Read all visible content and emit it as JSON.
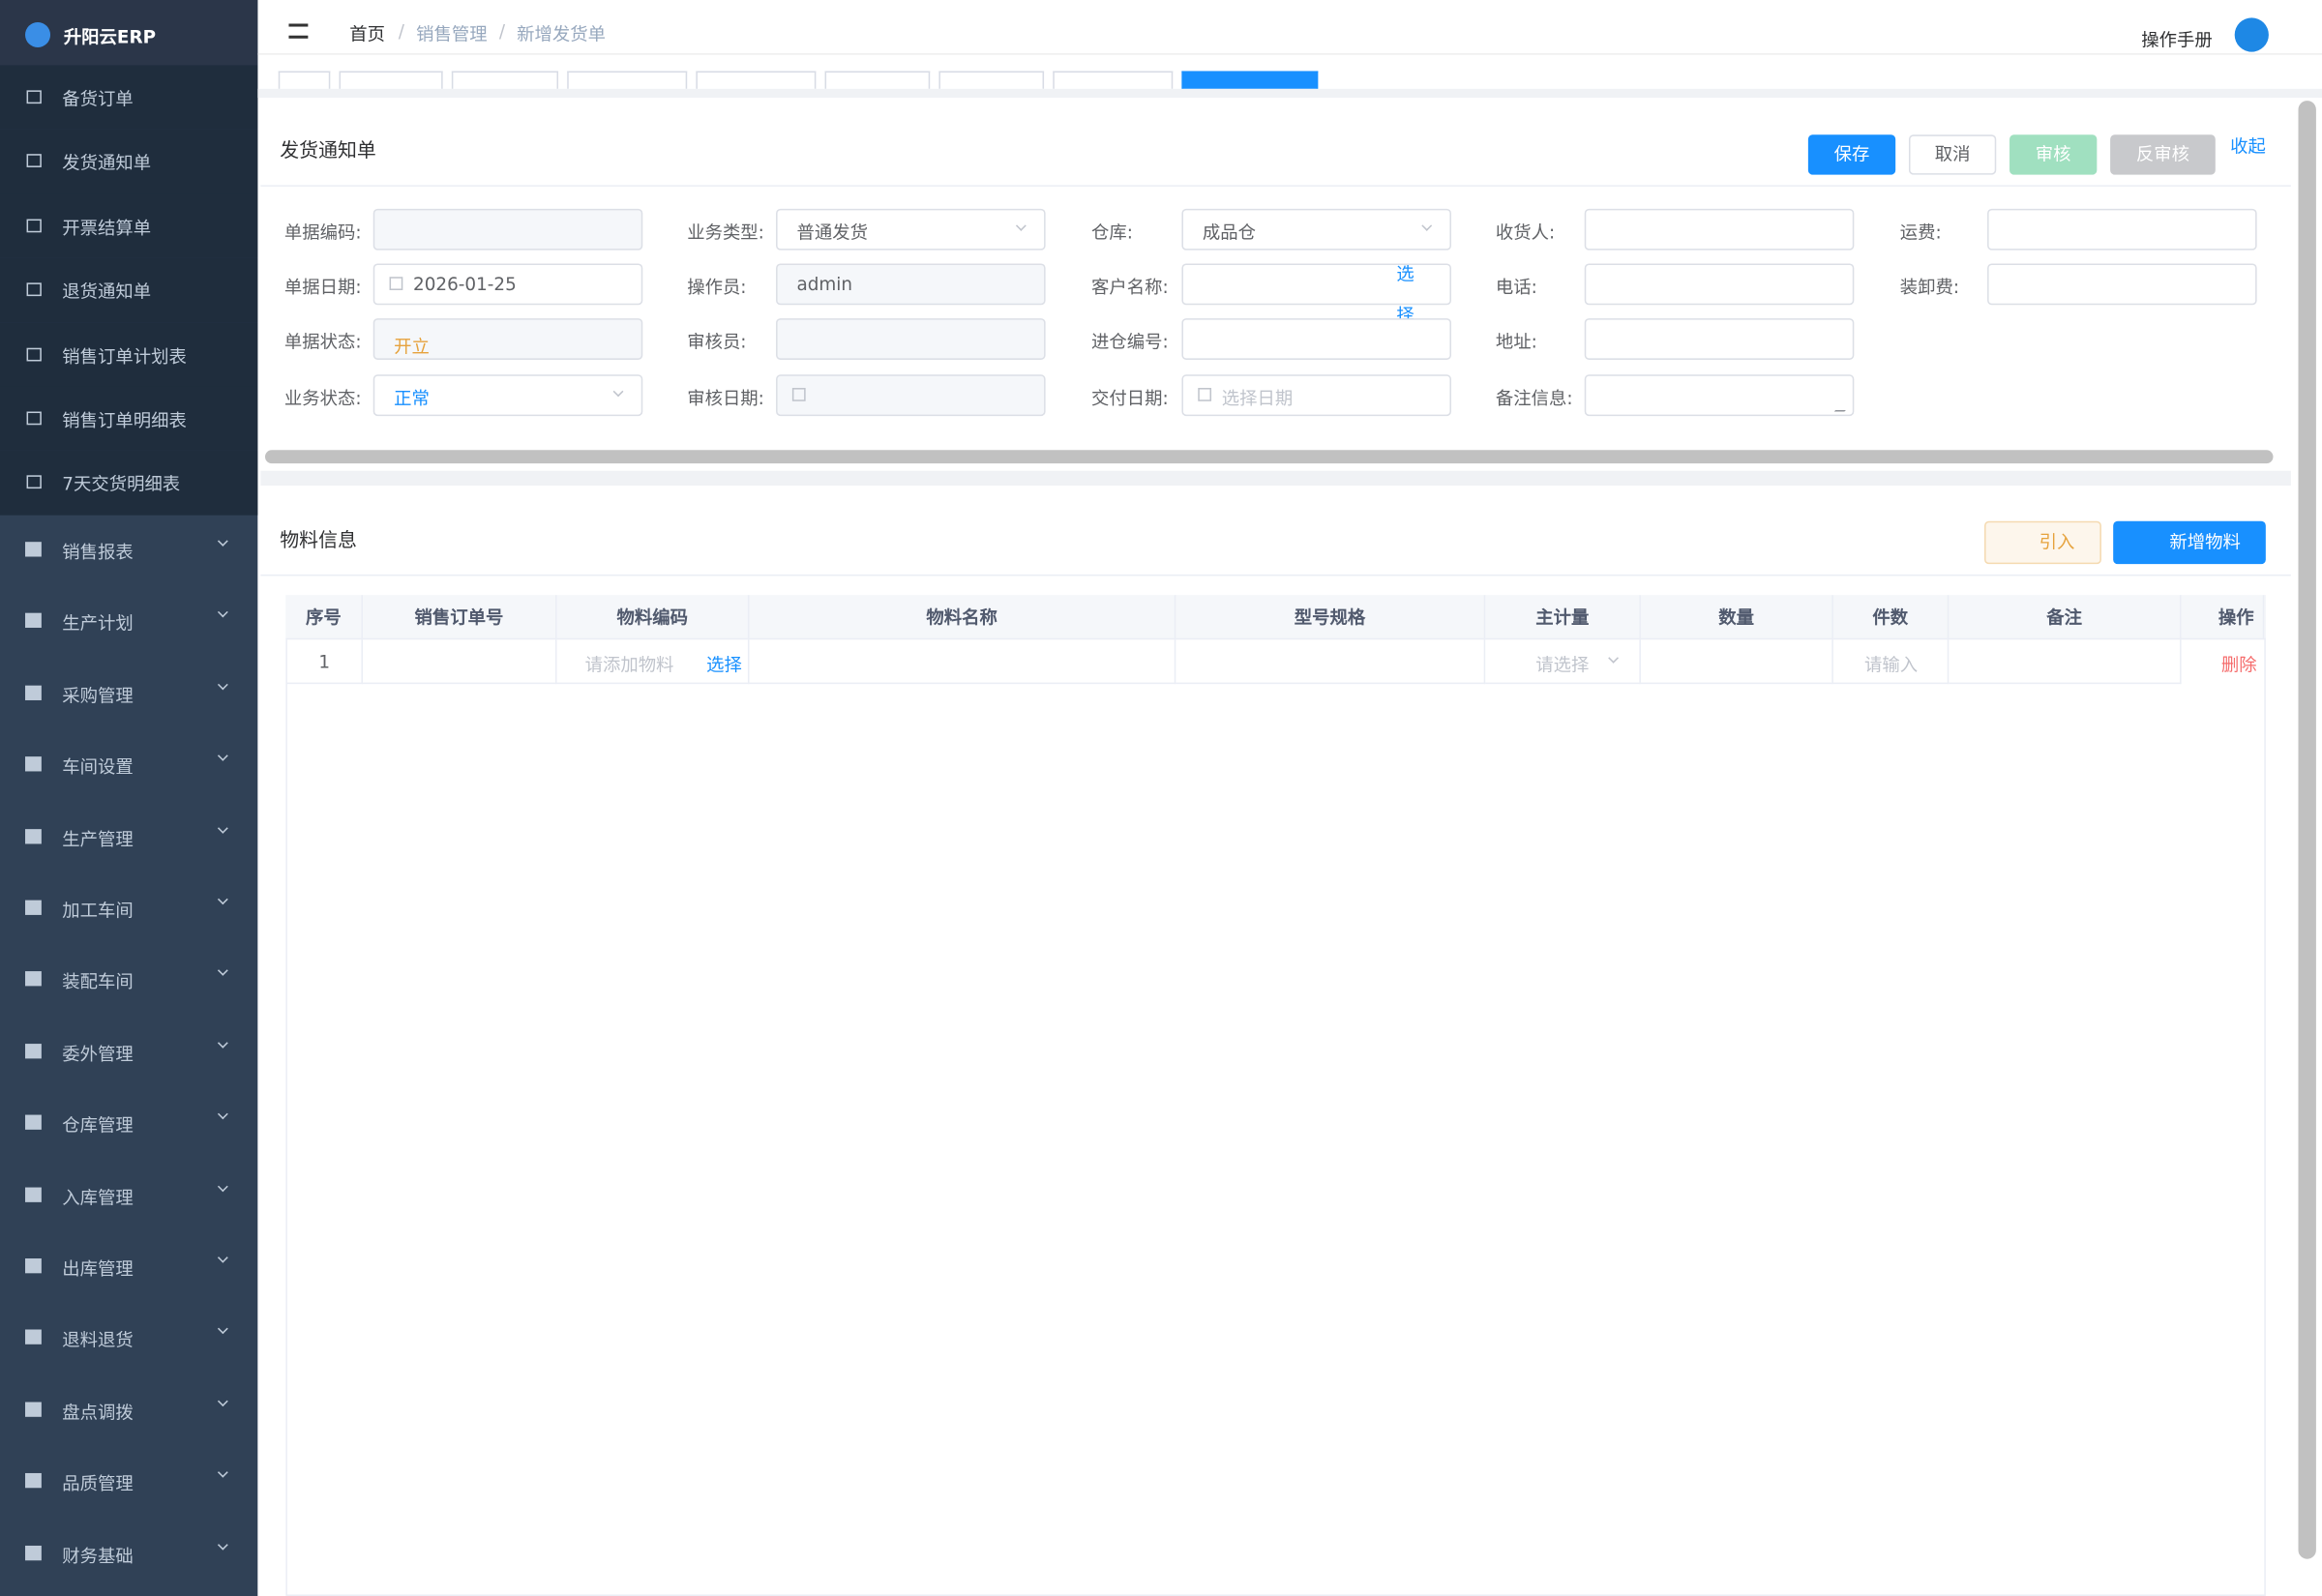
{
  "sidebar": {
    "logo": "升阳云ERP",
    "sub_items": [
      "备货订单",
      "发货通知单",
      "开票结算单",
      "退货通知单",
      "销售订单计划表",
      "销售订单明细表",
      "7天交货明细表"
    ],
    "groups": [
      "销售报表",
      "生产计划",
      "采购管理",
      "车间设置",
      "生产管理",
      "加工车间",
      "装配车间",
      "委外管理",
      "仓库管理",
      "入库管理",
      "出库管理",
      "退料退货",
      "盘点调拨",
      "品质管理",
      "财务基础"
    ]
  },
  "header": {
    "breadcrumb": [
      "首页",
      "销售管理",
      "新增发货单"
    ],
    "manual": "操作手册"
  },
  "form": {
    "title": "发货通知单",
    "buttons": [
      "保存",
      "取消",
      "审核",
      "反审核"
    ],
    "collapse": "收起",
    "columns": [
      [
        {
          "label": "单据编码:",
          "kind": "disabled"
        },
        {
          "label": "单据日期:",
          "kind": "date",
          "value": "2026-01-25"
        },
        {
          "label": "单据状态:",
          "kind": "disabled",
          "value": "开立",
          "color": "#e6a23c"
        },
        {
          "label": "业务状态:",
          "kind": "select",
          "value": "正常",
          "color": "#1890ff"
        }
      ],
      [
        {
          "label": "业务类型:",
          "kind": "select",
          "value": "普通发货"
        },
        {
          "label": "操作员:",
          "kind": "disabled",
          "value": "admin"
        },
        {
          "label": "审核员:",
          "kind": "disabled"
        },
        {
          "label": "审核日期:",
          "kind": "disabled-date"
        }
      ],
      [
        {
          "label": "仓库:",
          "kind": "select",
          "value": "成品仓"
        },
        {
          "label": "客户名称:",
          "kind": "link",
          "link": "选择"
        },
        {
          "label": "进仓编号:",
          "kind": "input"
        },
        {
          "label": "交付日期:",
          "kind": "date",
          "placeholder": "选择日期"
        }
      ],
      [
        {
          "label": "收货人:",
          "kind": "input"
        },
        {
          "label": "电话:",
          "kind": "input"
        },
        {
          "label": "地址:",
          "kind": "input"
        },
        {
          "label": "备注信息:",
          "kind": "textarea"
        }
      ],
      [
        {
          "label": "运费:",
          "kind": "input"
        },
        {
          "label": "装卸费:",
          "kind": "input"
        }
      ]
    ]
  },
  "materials": {
    "title": "物料信息",
    "buttons": [
      "引入",
      "新增物料"
    ],
    "columns": [
      "序号",
      "销售订单号",
      "物料编码",
      "物料名称",
      "型号规格",
      "主计量",
      "数量",
      "件数",
      "备注",
      "操作"
    ],
    "row": {
      "index": "1",
      "code_placeholder": "请添加物料",
      "code_link": "选择",
      "unit_placeholder": "请选择",
      "count_placeholder": "请输入",
      "action": "删除"
    }
  }
}
